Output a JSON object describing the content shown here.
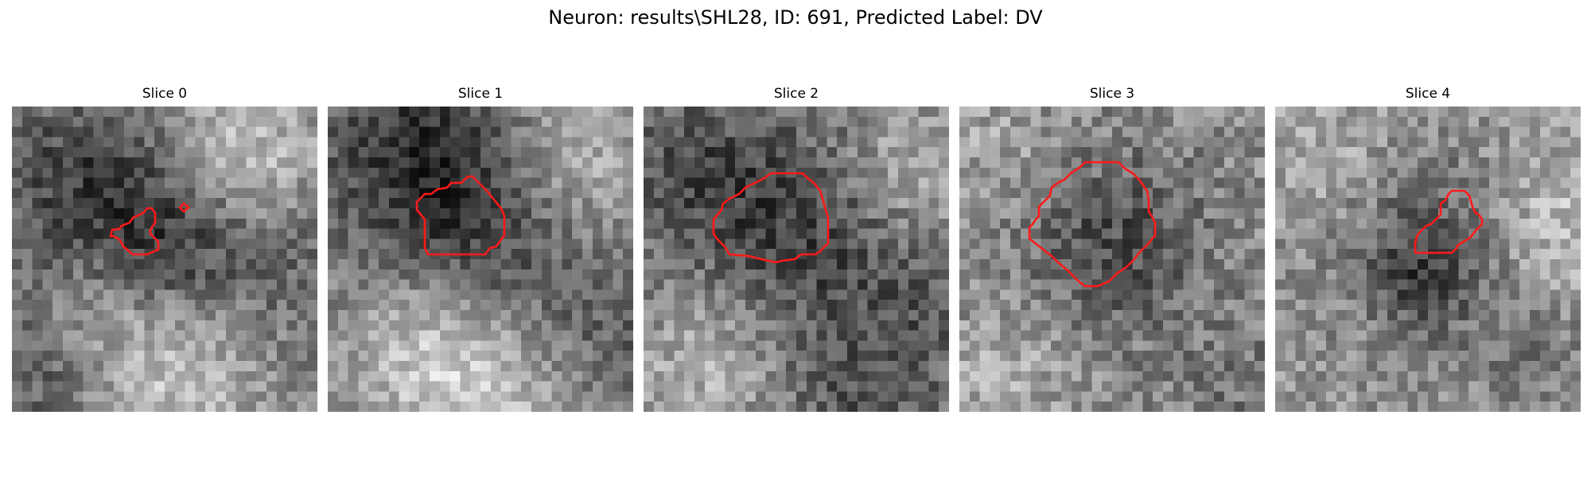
{
  "figure": {
    "title": "Neuron: results\\SHL28, ID: 691, Predicted Label: DV"
  },
  "image": {
    "grid": 30,
    "colormap": "gray",
    "overlay_color": "#ff1a1a"
  },
  "slices": [
    {
      "title": "Slice 0"
    },
    {
      "title": "Slice 1"
    },
    {
      "title": "Slice 2"
    },
    {
      "title": "Slice 3"
    },
    {
      "title": "Slice 4"
    }
  ]
}
